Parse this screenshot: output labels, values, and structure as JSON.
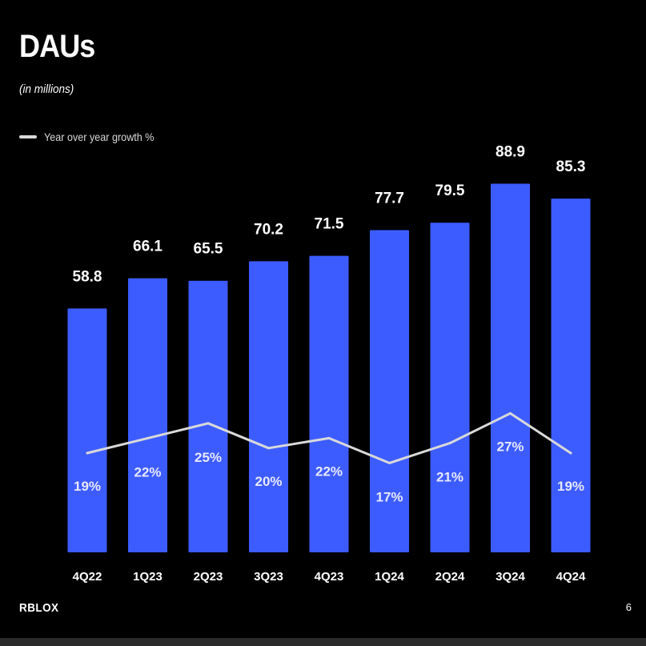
{
  "slide": {
    "title": "DAUs",
    "subtitle": "(in millions)",
    "logo": "RBLOX",
    "page_number": "6"
  },
  "colors": {
    "background": "#000000",
    "bar": "#3d5cff",
    "growth_line": "#d9d9d9",
    "text": "#ffffff"
  },
  "chart_data": {
    "type": "bar",
    "title": "DAUs",
    "subtitle": "(in millions)",
    "categories": [
      "4Q22",
      "1Q23",
      "2Q23",
      "3Q23",
      "4Q23",
      "1Q24",
      "2Q24",
      "3Q24",
      "4Q24"
    ],
    "series": [
      {
        "name": "DAUs",
        "type": "bar",
        "values": [
          58.8,
          66.1,
          65.5,
          70.2,
          71.5,
          77.7,
          79.5,
          88.9,
          85.3
        ],
        "labels": [
          "58.8",
          "66.1",
          "65.5",
          "70.2",
          "71.5",
          "77.7",
          "79.5",
          "88.9",
          "85.3"
        ]
      },
      {
        "name": "Year over year growth %",
        "type": "line",
        "values": [
          19,
          22,
          25,
          20,
          22,
          17,
          21,
          27,
          19
        ],
        "labels": [
          "19%",
          "22%",
          "25%",
          "20%",
          "22%",
          "17%",
          "21%",
          "27%",
          "19%"
        ]
      }
    ],
    "legend": {
      "entries": [
        "Year over year growth %"
      ],
      "placement": "top-left"
    },
    "grid": false,
    "xlabel": "",
    "ylabel": ""
  }
}
